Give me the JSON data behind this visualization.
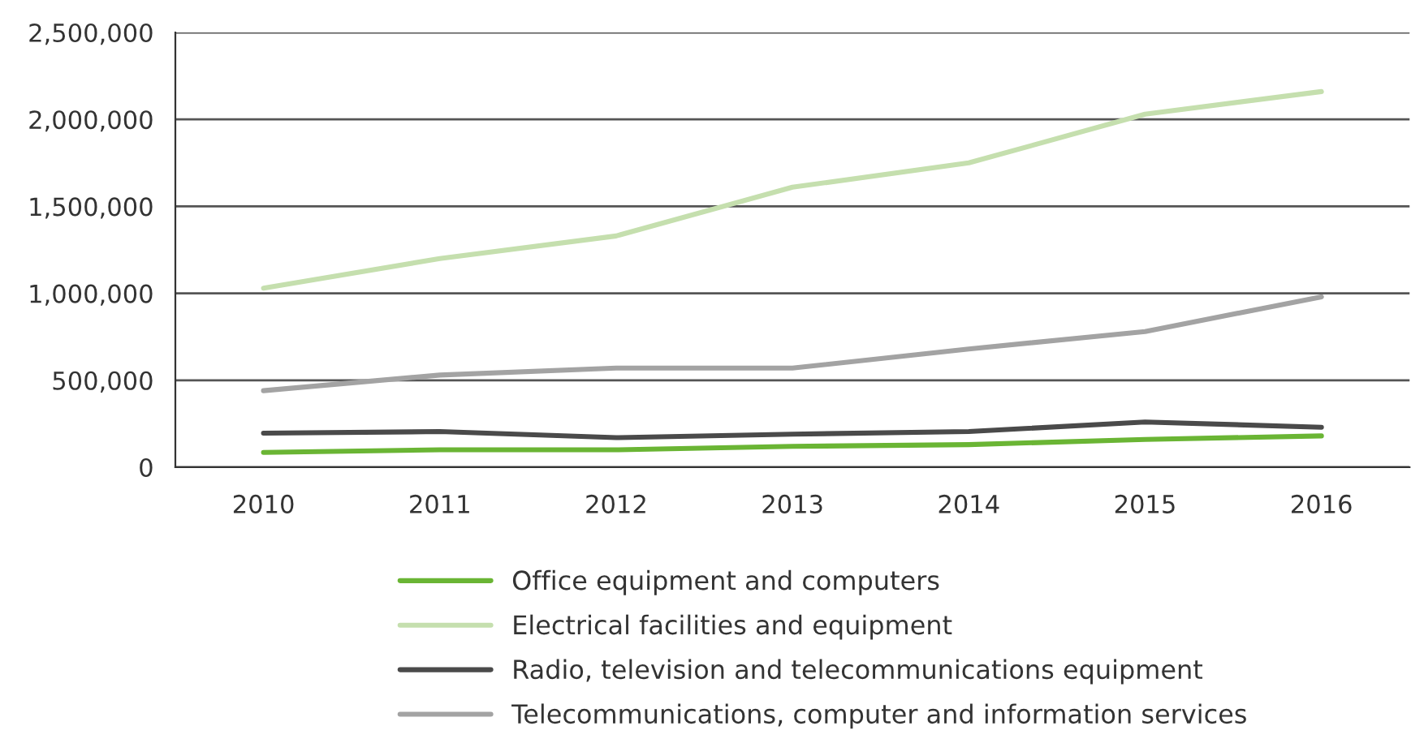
{
  "chart_data": {
    "type": "line",
    "categories": [
      "2010",
      "2011",
      "2012",
      "2013",
      "2014",
      "2015",
      "2016"
    ],
    "series": [
      {
        "name": "Office equipment and computers",
        "color": "#6ab534",
        "values": [
          85000,
          100000,
          100000,
          120000,
          130000,
          160000,
          180000
        ]
      },
      {
        "name": "Electrical facilities and equipment",
        "color": "#c5dfae",
        "values": [
          1030000,
          1200000,
          1330000,
          1610000,
          1750000,
          2030000,
          2160000
        ]
      },
      {
        "name": "Radio, television and telecommunications equipment",
        "color": "#4a4a4a",
        "values": [
          196000,
          205000,
          170000,
          190000,
          205000,
          260000,
          230000
        ]
      },
      {
        "name": "Telecommunications, computer and information services",
        "color": "#a3a3a3",
        "values": [
          440000,
          530000,
          570000,
          570000,
          680000,
          780000,
          980000
        ]
      }
    ],
    "ylim": [
      0,
      2500000
    ],
    "yticks": [
      {
        "value": 0,
        "label": "0"
      },
      {
        "value": 500000,
        "label": "500,000"
      },
      {
        "value": 1000000,
        "label": "1,000,000"
      },
      {
        "value": 1500000,
        "label": "1,500,000"
      },
      {
        "value": 2000000,
        "label": "2,000,000"
      },
      {
        "value": 2500000,
        "label": "2,500,000"
      }
    ],
    "grid": "y",
    "legend": "bottom",
    "marker": "none",
    "line_style": "solid"
  }
}
